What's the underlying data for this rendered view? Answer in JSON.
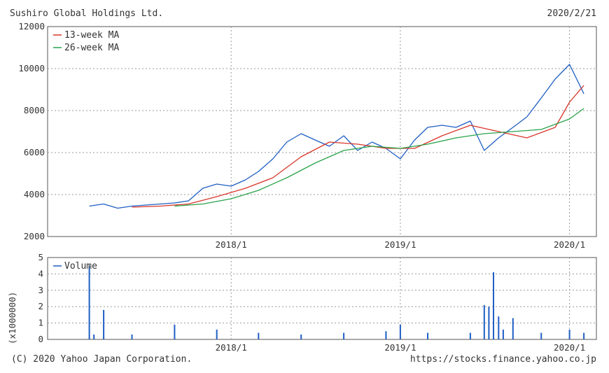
{
  "header": {
    "company": "Sushiro Global Holdings Ltd.",
    "date": "2020/2/21"
  },
  "footer": {
    "copyright": "(C) 2020 Yahoo Japan Corporation.",
    "url": "https://stocks.finance.yahoo.co.jp"
  },
  "colors": {
    "price": "#1f5fc4",
    "ma13": "#d9362b",
    "ma26": "#2aa34a",
    "volume": "#1f5fc4",
    "grid": "#999999"
  },
  "chart_data": [
    {
      "type": "line",
      "x_ticks": [
        "2018/1",
        "2019/1",
        "2020/1"
      ],
      "ylim": [
        2000,
        12000
      ],
      "y_ticks": [
        "2000",
        "4000",
        "6000",
        "8000",
        "10000",
        "12000"
      ],
      "grid": true,
      "legend": "top-left",
      "series": [
        {
          "name": "",
          "x": [
            "2017/3",
            "2017/4",
            "2017/5",
            "2017/6",
            "2017/7",
            "2017/8",
            "2017/9",
            "2017/10",
            "2017/11",
            "2017/12",
            "2018/1",
            "2018/2",
            "2018/3",
            "2018/4",
            "2018/5",
            "2018/6",
            "2018/7",
            "2018/8",
            "2018/9",
            "2018/10",
            "2018/11",
            "2018/12",
            "2019/1",
            "2019/2",
            "2019/3",
            "2019/4",
            "2019/5",
            "2019/6",
            "2019/7",
            "2019/8",
            "2019/9",
            "2019/10",
            "2019/11",
            "2019/12",
            "2020/1",
            "2020/2"
          ],
          "values": [
            3450,
            3550,
            3350,
            3450,
            3500,
            3550,
            3600,
            3700,
            4300,
            4500,
            4400,
            4700,
            5100,
            5700,
            6500,
            6900,
            6600,
            6300,
            6800,
            6100,
            6500,
            6200,
            5700,
            6600,
            7200,
            7300,
            7200,
            7500,
            6100,
            6700,
            7200,
            7700,
            8600,
            9500,
            10200,
            8800
          ]
        },
        {
          "name": "13-week MA",
          "x": [
            "2017/6",
            "2017/8",
            "2017/10",
            "2017/12",
            "2018/2",
            "2018/4",
            "2018/6",
            "2018/8",
            "2018/10",
            "2018/12",
            "2019/2",
            "2019/4",
            "2019/6",
            "2019/8",
            "2019/10",
            "2019/12",
            "2020/1",
            "2020/2"
          ],
          "values": [
            3400,
            3450,
            3550,
            3900,
            4300,
            4800,
            5800,
            6500,
            6400,
            6200,
            6200,
            6800,
            7300,
            7000,
            6700,
            7200,
            8400,
            9200
          ]
        },
        {
          "name": "26-week MA",
          "x": [
            "2017/9",
            "2017/11",
            "2018/1",
            "2018/3",
            "2018/5",
            "2018/7",
            "2018/9",
            "2018/11",
            "2019/1",
            "2019/3",
            "2019/5",
            "2019/7",
            "2019/9",
            "2019/11",
            "2020/1",
            "2020/2"
          ],
          "values": [
            3450,
            3550,
            3800,
            4200,
            4800,
            5500,
            6100,
            6300,
            6200,
            6400,
            6700,
            6900,
            7000,
            7100,
            7600,
            8100
          ]
        }
      ]
    },
    {
      "type": "bar",
      "ylim": [
        0,
        5
      ],
      "y_ticks": [
        "0",
        "1",
        "2",
        "3",
        "4",
        "5"
      ],
      "x_ticks": [
        "2018/1",
        "2019/1",
        "2020/1"
      ],
      "ylabel": "(x1000000)",
      "legend": "top-left",
      "series": [
        {
          "name": "Volume",
          "x": [
            "2017/3",
            "2017/3b",
            "2017/4",
            "2017/6",
            "2017/9",
            "2017/12",
            "2018/3",
            "2018/6",
            "2018/9",
            "2018/12",
            "2019/1",
            "2019/3",
            "2019/6",
            "2019/7",
            "2019/7b",
            "2019/7c",
            "2019/8",
            "2019/8b",
            "2019/9",
            "2019/11",
            "2020/1",
            "2020/2"
          ],
          "values": [
            4.5,
            0.3,
            1.8,
            0.3,
            0.9,
            0.6,
            0.4,
            0.3,
            0.4,
            0.5,
            0.9,
            0.4,
            0.4,
            2.1,
            2.0,
            4.1,
            1.4,
            0.6,
            1.3,
            0.4,
            0.6,
            0.4
          ]
        }
      ]
    }
  ]
}
